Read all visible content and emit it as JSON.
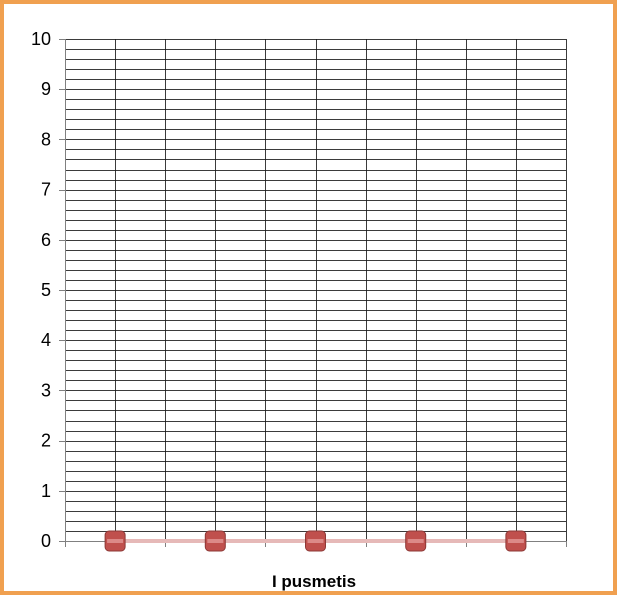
{
  "chart_data": {
    "type": "line",
    "title": "",
    "xlabel": "I pusmetis",
    "ylabel": "",
    "ylim": [
      0,
      10
    ],
    "y_ticks": [
      0,
      1,
      2,
      3,
      4,
      5,
      6,
      7,
      8,
      9,
      10
    ],
    "minor_step": 0.2,
    "grid": true,
    "x": [
      1,
      2,
      3,
      4,
      5
    ],
    "series": [
      {
        "values": [
          0,
          0,
          0,
          0,
          0
        ],
        "color": "#c0504d",
        "line_color": "#e6b9b8"
      }
    ]
  },
  "colors": {
    "border": "#f0a050",
    "grid": "#1a1a1a",
    "marker": "#c0504d"
  }
}
